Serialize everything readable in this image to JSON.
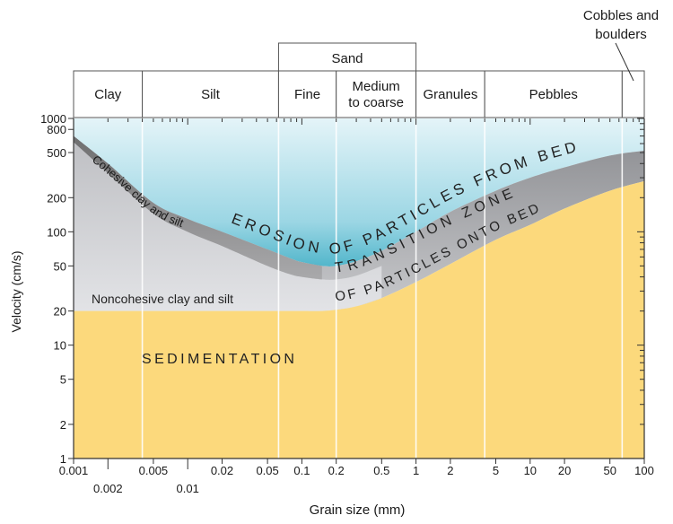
{
  "chart_data": {
    "type": "area",
    "ylabel": "Velocity (cm/s)",
    "xlabel": "Grain size (mm)",
    "x_scale": "log",
    "y_scale": "log",
    "xlim": [
      0.001,
      100
    ],
    "ylim": [
      1,
      1000
    ],
    "x_ticks": [
      {
        "value": 0.001,
        "label": "0.001",
        "row": 1
      },
      {
        "value": 0.002,
        "label": "0.002",
        "row": 2
      },
      {
        "value": 0.005,
        "label": "0.005",
        "row": 1
      },
      {
        "value": 0.01,
        "label": "0.01",
        "row": 2
      },
      {
        "value": 0.02,
        "label": "0.02",
        "row": 1
      },
      {
        "value": 0.05,
        "label": "0.05",
        "row": 1
      },
      {
        "value": 0.1,
        "label": "0.1",
        "row": 1
      },
      {
        "value": 0.2,
        "label": "0.2",
        "row": 1
      },
      {
        "value": 0.5,
        "label": "0.5",
        "row": 1
      },
      {
        "value": 1,
        "label": "1",
        "row": 1
      },
      {
        "value": 2,
        "label": "2",
        "row": 1
      },
      {
        "value": 5,
        "label": "5",
        "row": 1
      },
      {
        "value": 10,
        "label": "10",
        "row": 1
      },
      {
        "value": 20,
        "label": "20",
        "row": 1
      },
      {
        "value": 50,
        "label": "50",
        "row": 1
      },
      {
        "value": 100,
        "label": "100",
        "row": 1
      }
    ],
    "y_ticks": [
      {
        "value": 1,
        "label": "1"
      },
      {
        "value": 2,
        "label": "2"
      },
      {
        "value": 5,
        "label": "5"
      },
      {
        "value": 10,
        "label": "10"
      },
      {
        "value": 20,
        "label": "20"
      },
      {
        "value": 50,
        "label": "50"
      },
      {
        "value": 100,
        "label": "100"
      },
      {
        "value": 200,
        "label": "200"
      },
      {
        "value": 500,
        "label": "500"
      },
      {
        "value": 800,
        "label": "800"
      },
      {
        "value": 1000,
        "label": "1000"
      }
    ],
    "grain_classes": [
      {
        "label": "Clay",
        "from": 0.001,
        "to": 0.004
      },
      {
        "label": "Silt",
        "from": 0.004,
        "to": 0.0625
      },
      {
        "label": "Fine",
        "from": 0.0625,
        "to": 0.2
      },
      {
        "label": "Medium\nto coarse",
        "from": 0.2,
        "to": 1
      },
      {
        "label": "Granules",
        "from": 1,
        "to": 4
      },
      {
        "label": "Pebbles",
        "from": 4,
        "to": 64
      },
      {
        "label": "",
        "from": 64,
        "to": 100
      }
    ],
    "sand_group": {
      "label": "Sand",
      "from": 0.0625,
      "to": 1
    },
    "cobbles_label": "Cobbles and\nboulders",
    "series": [
      {
        "name": "Cohesive clay and silt",
        "x": [
          0.001,
          0.002,
          0.005,
          0.01,
          0.02,
          0.05,
          0.08,
          0.1,
          0.15,
          0.2,
          0.3,
          0.5,
          1,
          2,
          5,
          10,
          20,
          50,
          100
        ],
        "y": [
          700,
          400,
          180,
          130,
          100,
          70,
          58,
          54,
          50,
          50,
          55,
          68,
          100,
          150,
          230,
          300,
          370,
          470,
          520
        ]
      },
      {
        "name": "Transition boundary",
        "x": [
          0.001,
          0.002,
          0.005,
          0.01,
          0.02,
          0.05,
          0.08,
          0.1,
          0.15,
          0.2,
          0.3,
          0.5,
          1,
          2,
          5,
          10,
          20,
          50,
          100
        ],
        "y": [
          620,
          330,
          145,
          100,
          75,
          50,
          42,
          40,
          38,
          38,
          41,
          50,
          70,
          100,
          150,
          200,
          250,
          330,
          380
        ]
      },
      {
        "name": "Noncohesive clay and silt",
        "x": [
          0.001,
          0.002,
          0.005,
          0.01,
          0.02,
          0.05,
          0.08,
          0.1,
          0.15,
          0.2,
          0.3,
          0.5,
          1,
          2,
          5,
          10,
          20,
          50,
          100
        ],
        "y": [
          20,
          20,
          20,
          20,
          20,
          20,
          20,
          20,
          20,
          20.5,
          22,
          26,
          36,
          52,
          85,
          115,
          160,
          230,
          280
        ]
      }
    ],
    "region_labels": [
      {
        "id": "erosion",
        "text": "EROSION OF PARTICLES FROM BED"
      },
      {
        "id": "transition",
        "text": "TRANSITION ZONE"
      },
      {
        "id": "onto",
        "text": "OF PARTICLES ONTO BED"
      },
      {
        "id": "sedimentation",
        "text": "SEDIMENTATION"
      },
      {
        "id": "cohesive",
        "text": "Cohesive clay and silt"
      },
      {
        "id": "noncohesive",
        "text": "Noncohesive clay and silt"
      }
    ],
    "colors": {
      "erosion": "#7ccbdb",
      "transition": "#a7a8ab",
      "cohesive_band": "#8c8c8c",
      "fine_region": "#d3d4d8",
      "sedimentation": "#fcd97c"
    }
  }
}
